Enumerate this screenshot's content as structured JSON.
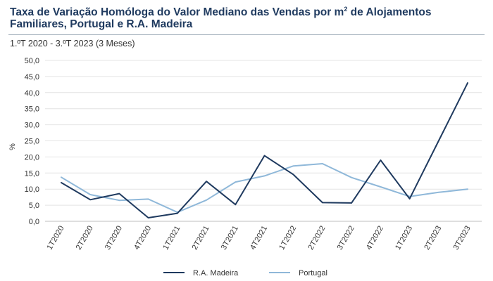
{
  "chart_data": {
    "type": "line",
    "title": "Taxa de Variação Homóloga do Valor Mediano das Vendas por m",
    "title_superscript": "2",
    "title_rest": " de Alojamentos Familiares, Portugal e R.A. Madeira",
    "subtitle": "1.ºT 2020 - 3.ºT 2023 (3 Meses)",
    "xlabel": "",
    "ylabel": "%",
    "ylim": [
      0,
      50
    ],
    "yticks": [
      "0,0",
      "5,0",
      "10,0",
      "15,0",
      "20,0",
      "25,0",
      "30,0",
      "35,0",
      "40,0",
      "45,0",
      "50,0"
    ],
    "categories": [
      "1T2020",
      "2T2020",
      "3T2020",
      "4T2020",
      "1T2021",
      "2T2021",
      "3T2021",
      "4T2021",
      "1T2022",
      "2T2022",
      "3T2022",
      "4T2022",
      "1T2023",
      "2T2023",
      "3T2023"
    ],
    "series": [
      {
        "name": "R.A. Madeira",
        "color": "#1f3a5f",
        "values": [
          12.0,
          6.7,
          8.6,
          1.1,
          2.5,
          12.4,
          5.2,
          20.4,
          14.5,
          5.8,
          5.7,
          19.0,
          7.0,
          25.0,
          43.0
        ]
      },
      {
        "name": "Portugal",
        "color": "#8fb8d9",
        "values": [
          13.7,
          8.3,
          6.5,
          6.9,
          2.8,
          6.6,
          12.2,
          14.1,
          17.2,
          17.9,
          13.6,
          10.7,
          7.7,
          9.0,
          10.0
        ]
      }
    ],
    "grid": true,
    "legend_position": "bottom"
  }
}
